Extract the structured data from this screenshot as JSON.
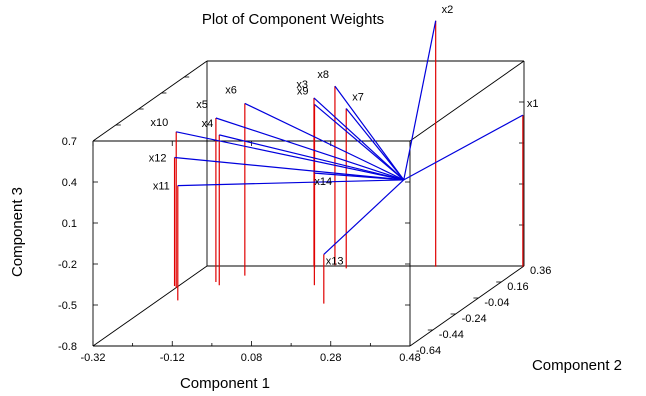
{
  "chart_data": {
    "type": "scatter",
    "title": "Plot of Component Weights",
    "xlabel": "Component 1",
    "ylabel": "Component 2",
    "zlabel": "Component 3",
    "x_ticks": [
      "-0.32",
      "-0.12",
      "0.08",
      "0.28",
      "0.48"
    ],
    "y_ticks": [
      "-0.64",
      "-0.44",
      "-0.24",
      "-0.04",
      "0.16",
      "0.36"
    ],
    "z_ticks": [
      "-0.8",
      "-0.5",
      "-0.2",
      "0.1",
      "0.4",
      "0.7"
    ],
    "xlim": [
      -0.32,
      0.48
    ],
    "ylim": [
      -0.64,
      0.36
    ],
    "zlim": [
      -0.8,
      0.7
    ],
    "points": [
      {
        "name": "x1",
        "x": 0.48,
        "y": 0.35,
        "z": 0.31
      },
      {
        "name": "x2",
        "x": 0.26,
        "y": 0.35,
        "z": 1.0
      },
      {
        "name": "x3",
        "x": -0.05,
        "y": 0.36,
        "z": 0.43
      },
      {
        "name": "x4",
        "x": -0.22,
        "y": 0.12,
        "z": 0.3
      },
      {
        "name": "x5",
        "x": -0.24,
        "y": 0.16,
        "z": 0.4
      },
      {
        "name": "x6",
        "x": -0.19,
        "y": 0.24,
        "z": 0.46
      },
      {
        "name": "x7",
        "x": 0.04,
        "y": 0.33,
        "z": 0.37
      },
      {
        "name": "x8",
        "x": 0.0,
        "y": 0.37,
        "z": 0.51
      },
      {
        "name": "x9",
        "x": -0.04,
        "y": 0.33,
        "z": 0.4
      },
      {
        "name": "x10",
        "x": -0.32,
        "y": 0.09,
        "z": 0.34
      },
      {
        "name": "x11",
        "x": -0.27,
        "y": -0.07,
        "z": 0.04
      },
      {
        "name": "x12",
        "x": -0.33,
        "y": 0.11,
        "z": 0.14
      },
      {
        "name": "x13",
        "x": 0.11,
        "y": -0.11,
        "z": -0.44
      },
      {
        "name": "x14",
        "x": 0.02,
        "y": 0.12,
        "z": 0.02
      }
    ],
    "origin": {
      "x": 0.26,
      "y": 0.07,
      "z": 0.0
    },
    "colors": {
      "stem": "#e00000",
      "vector": "#0000dd",
      "frame": "#000000"
    },
    "grid": false,
    "legend": "none"
  }
}
